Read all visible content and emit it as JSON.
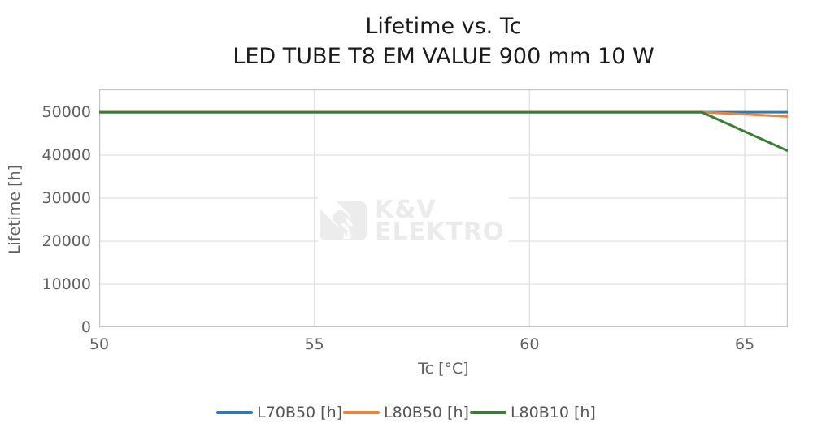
{
  "title": {
    "line1": "Lifetime vs. Tc",
    "line2": "LED TUBE T8 EM VALUE 900 mm 10 W"
  },
  "axes": {
    "x_label": "Tc [°C]",
    "y_label": "Lifetime [h]"
  },
  "watermark": {
    "brand_line1": "K&V",
    "brand_line2": "ELEKTRO",
    "logo": "plug-spark-logo",
    "color": "#ebebeb"
  },
  "chart_data": {
    "type": "line",
    "title": "Lifetime vs. Tc",
    "subtitle": "LED TUBE T8 EM VALUE 900 mm 10 W",
    "xlabel": "Tc [°C]",
    "ylabel": "Lifetime [h]",
    "xlim": [
      50,
      66
    ],
    "ylim": [
      0,
      55300
    ],
    "x_ticks": [
      50,
      55,
      60,
      65
    ],
    "y_ticks": [
      0,
      10000,
      20000,
      30000,
      40000,
      50000
    ],
    "grid": true,
    "grid_color": "#e3e3e3",
    "axis_border_color": "#c6c6c6",
    "legend_position": "bottom",
    "series": [
      {
        "name": "L70B50 [h]",
        "color": "#2e7bb1",
        "x": [
          50,
          64,
          66
        ],
        "y": [
          50000,
          50000,
          50000
        ]
      },
      {
        "name": "L80B50 [h]",
        "color": "#ed813e",
        "x": [
          50,
          64,
          66
        ],
        "y": [
          50000,
          50000,
          49000
        ]
      },
      {
        "name": "L80B10 [h]",
        "color": "#3a7d33",
        "x": [
          50,
          64,
          66
        ],
        "y": [
          50000,
          50000,
          41000
        ]
      }
    ]
  }
}
